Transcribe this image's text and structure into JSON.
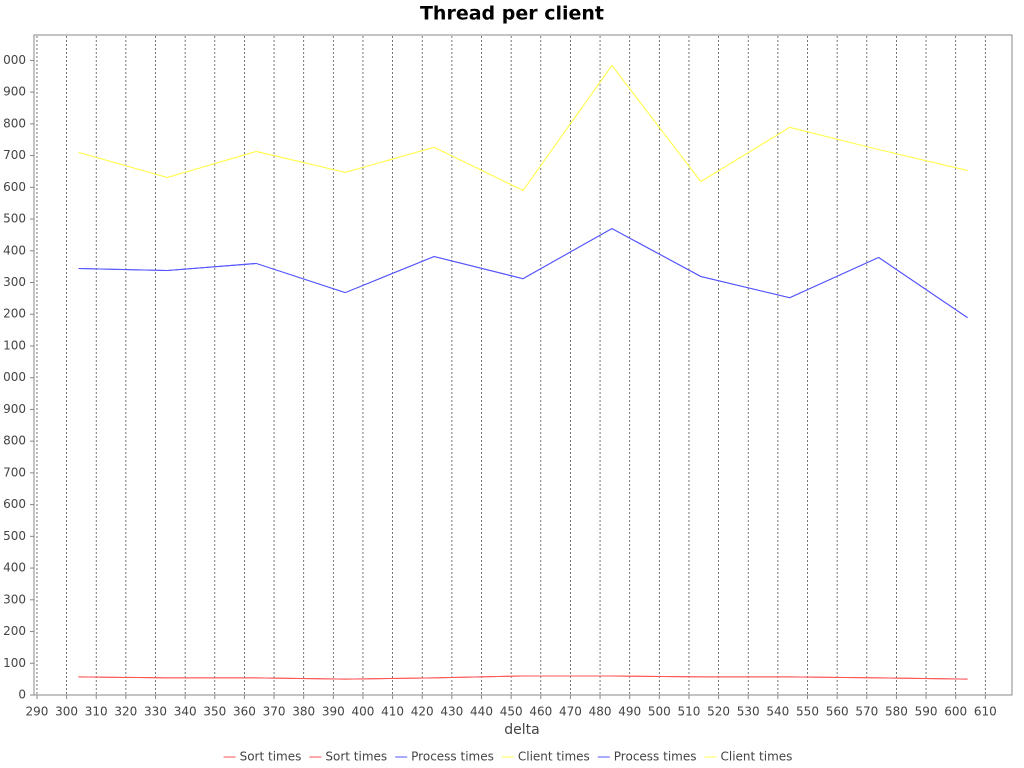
{
  "chart_data": {
    "type": "line",
    "title": "Thread per client",
    "x_label": "delta",
    "x": [
      304,
      334,
      364,
      394,
      424,
      454,
      484,
      514,
      544,
      574,
      604
    ],
    "series": [
      {
        "name": "Sort times",
        "color": "#ff5555",
        "values": [
          57,
          54,
          54,
          50,
          54,
          60,
          60,
          57,
          57,
          54,
          50
        ]
      },
      {
        "name": "Sort times",
        "color": "#ff5555",
        "values": [
          57,
          54,
          54,
          50,
          54,
          60,
          60,
          57,
          57,
          54,
          50
        ]
      },
      {
        "name": "Process times",
        "color": "#5555ff",
        "values": [
          1344,
          1338,
          1360,
          1268,
          1382,
          1312,
          1470,
          1319,
          1252,
          1379,
          1189
        ]
      },
      {
        "name": "Client times",
        "color": "#ffff55",
        "values": [
          1710,
          1631,
          1713,
          1647,
          1726,
          1590,
          1984,
          1618,
          1789,
          1719,
          1653
        ]
      },
      {
        "name": "Process times",
        "color": "#5555ff",
        "values": [
          1344,
          1338,
          1360,
          1268,
          1382,
          1312,
          1470,
          1319,
          1252,
          1379,
          1189
        ]
      },
      {
        "name": "Client times",
        "color": "#ffff55",
        "values": [
          1710,
          1631,
          1713,
          1647,
          1726,
          1590,
          1984,
          1618,
          1789,
          1719,
          1653
        ]
      }
    ],
    "xlim": [
      289,
      619
    ],
    "xticks": [
      290,
      300,
      310,
      320,
      330,
      340,
      350,
      360,
      370,
      380,
      390,
      400,
      410,
      420,
      430,
      440,
      450,
      460,
      470,
      480,
      490,
      500,
      510,
      520,
      530,
      540,
      550,
      560,
      570,
      580,
      590,
      600,
      610
    ],
    "ylim": [
      0,
      2080
    ],
    "yticks": [
      0,
      100,
      200,
      300,
      400,
      500,
      600,
      700,
      800,
      900,
      {
        "value": 1000,
        "label": "000"
      },
      {
        "value": 1100,
        "label": "100"
      },
      {
        "value": 1200,
        "label": "200"
      },
      {
        "value": 1300,
        "label": "300"
      },
      {
        "value": 1400,
        "label": "400"
      },
      {
        "value": 1500,
        "label": "500"
      },
      {
        "value": 1600,
        "label": "600"
      },
      {
        "value": 1700,
        "label": "700"
      },
      {
        "value": 1800,
        "label": "800"
      },
      {
        "value": 1900,
        "label": "900"
      },
      {
        "value": 2000,
        "label": "000"
      }
    ],
    "grid": "x",
    "legend": "bottom"
  }
}
